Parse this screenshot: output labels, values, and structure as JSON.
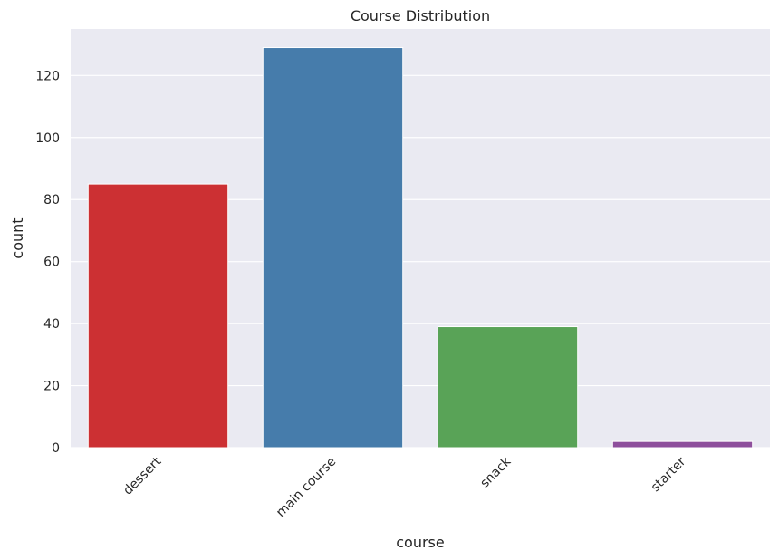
{
  "chart_data": {
    "type": "bar",
    "title": "Course Distribution",
    "xlabel": "course",
    "ylabel": "count",
    "categories": [
      "dessert",
      "main course",
      "snack",
      "starter"
    ],
    "values": [
      85,
      129,
      39,
      2
    ],
    "colors": [
      "#cc3033",
      "#467cab",
      "#59a357",
      "#8e4f9c"
    ],
    "ylim": [
      0,
      135
    ],
    "yticks": [
      0,
      20,
      40,
      60,
      80,
      100,
      120
    ],
    "grid": true,
    "background": "#eaeaf2"
  }
}
